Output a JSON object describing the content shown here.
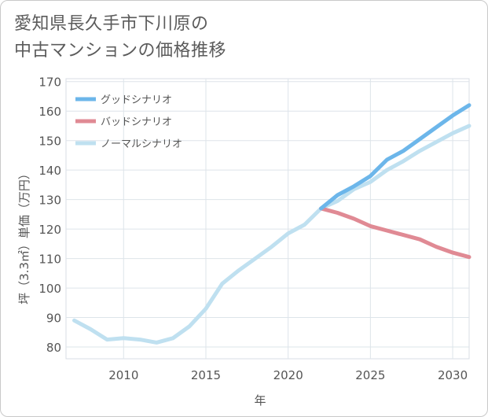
{
  "title_lines": [
    "愛知県長久手市下川原の",
    "中古マンションの価格推移"
  ],
  "chart_data": {
    "type": "line",
    "title": "愛知県長久手市下川原の中古マンションの価格推移",
    "xlabel": "年",
    "ylabel": "坪（3.3㎡）単価（万円）",
    "xlim": [
      2006.5,
      2031
    ],
    "ylim": [
      76,
      171
    ],
    "xticks": [
      2010,
      2015,
      2020,
      2025,
      2030
    ],
    "yticks": [
      80,
      90,
      100,
      110,
      120,
      130,
      140,
      150,
      160,
      170
    ],
    "series": [
      {
        "name": "グッドシナリオ",
        "color": "#6cb6ea",
        "x": [
          2022,
          2023,
          2024,
          2025,
          2026,
          2027,
          2028,
          2029,
          2030,
          2031
        ],
        "y": [
          127,
          131.5,
          134.5,
          138,
          143.5,
          146.5,
          150.5,
          154.5,
          158.5,
          162
        ]
      },
      {
        "name": "バッドシナリオ",
        "color": "#e08a94",
        "x": [
          2022,
          2023,
          2024,
          2025,
          2026,
          2027,
          2028,
          2029,
          2030,
          2031
        ],
        "y": [
          127,
          125.5,
          123.5,
          121,
          119.5,
          118,
          116.5,
          114,
          112,
          110.5
        ]
      },
      {
        "name": "ノーマルシナリオ",
        "color": "#bfe0f0",
        "x": [
          2007,
          2008,
          2009,
          2010,
          2011,
          2012,
          2013,
          2014,
          2015,
          2016,
          2017,
          2018,
          2019,
          2020,
          2021,
          2022,
          2023,
          2024,
          2025,
          2026,
          2027,
          2028,
          2029,
          2030,
          2031
        ],
        "y": [
          89,
          86,
          82.5,
          83,
          82.5,
          81.5,
          83,
          87,
          93,
          101.5,
          106,
          110,
          114,
          118.5,
          121.5,
          127,
          129.5,
          133.5,
          136,
          140,
          143,
          146.5,
          149.5,
          152.5,
          155
        ]
      }
    ],
    "legend": "top-left"
  }
}
